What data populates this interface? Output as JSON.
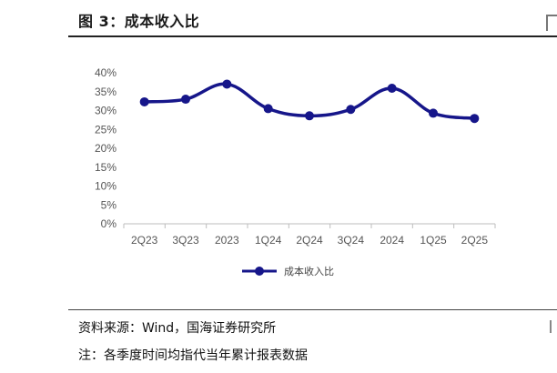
{
  "header": {
    "title": "图 3：成本收入比"
  },
  "footer": {
    "source": "资料来源：Wind，国海证券研究所",
    "note": "注：各季度时间均指代当年累计报表数据"
  },
  "colors": {
    "series": "#16168a",
    "axis": "#bdbdbd",
    "tick": "#555555"
  },
  "chart_data": {
    "type": "line",
    "title": "",
    "xlabel": "",
    "ylabel": "",
    "categories": [
      "2Q23",
      "3Q23",
      "2023",
      "1Q24",
      "2Q24",
      "3Q24",
      "2024",
      "1Q25",
      "2Q25"
    ],
    "series": [
      {
        "name": "成本收入比",
        "values": [
          32.3,
          33.0,
          37.0,
          30.5,
          28.6,
          30.3,
          35.9,
          29.3,
          27.9
        ]
      }
    ],
    "ylim": [
      0,
      40
    ],
    "yticks": [
      "0%",
      "5%",
      "10%",
      "15%",
      "20%",
      "25%",
      "30%",
      "35%",
      "40%"
    ],
    "grid": false,
    "legend": "bottom",
    "smooth": true,
    "markers": true
  }
}
